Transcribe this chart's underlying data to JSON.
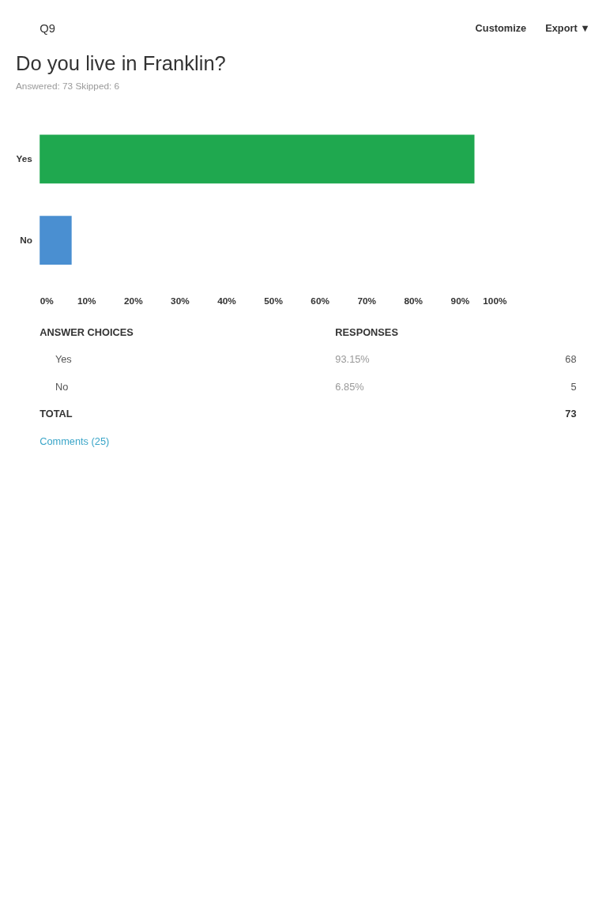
{
  "chart_data": {
    "type": "bar",
    "orientation": "horizontal",
    "title": "Do you live in Franklin?",
    "subtitle": "Answered: 73    Skipped: 6",
    "categories": [
      "Yes",
      "No"
    ],
    "values": [
      93.15,
      6.85
    ],
    "colors": [
      "#1fa84f",
      "#4a8fd1"
    ],
    "xlim": [
      0,
      100
    ],
    "xticks": [
      {
        "value": 0,
        "label": "0%"
      },
      {
        "value": 10,
        "label": "10%"
      },
      {
        "value": 20,
        "label": "20%"
      },
      {
        "value": 30,
        "label": "30%"
      },
      {
        "value": 40,
        "label": "40%"
      },
      {
        "value": 50,
        "label": "50%"
      },
      {
        "value": 60,
        "label": "60%"
      },
      {
        "value": 70,
        "label": "70%"
      },
      {
        "value": 80,
        "label": "80%"
      },
      {
        "value": 90,
        "label": "90%"
      },
      {
        "value": 100,
        "label": "100%"
      }
    ],
    "grid": false,
    "legend": false,
    "annotations": [
      "Q9",
      "Customize",
      "Export ▼",
      "ANSWER CHOICES",
      "RESPONSES",
      "Yes",
      "93.15%",
      "68",
      "No",
      "6.85%",
      "5",
      "TOTAL",
      "73",
      "Comments (25)"
    ]
  }
}
